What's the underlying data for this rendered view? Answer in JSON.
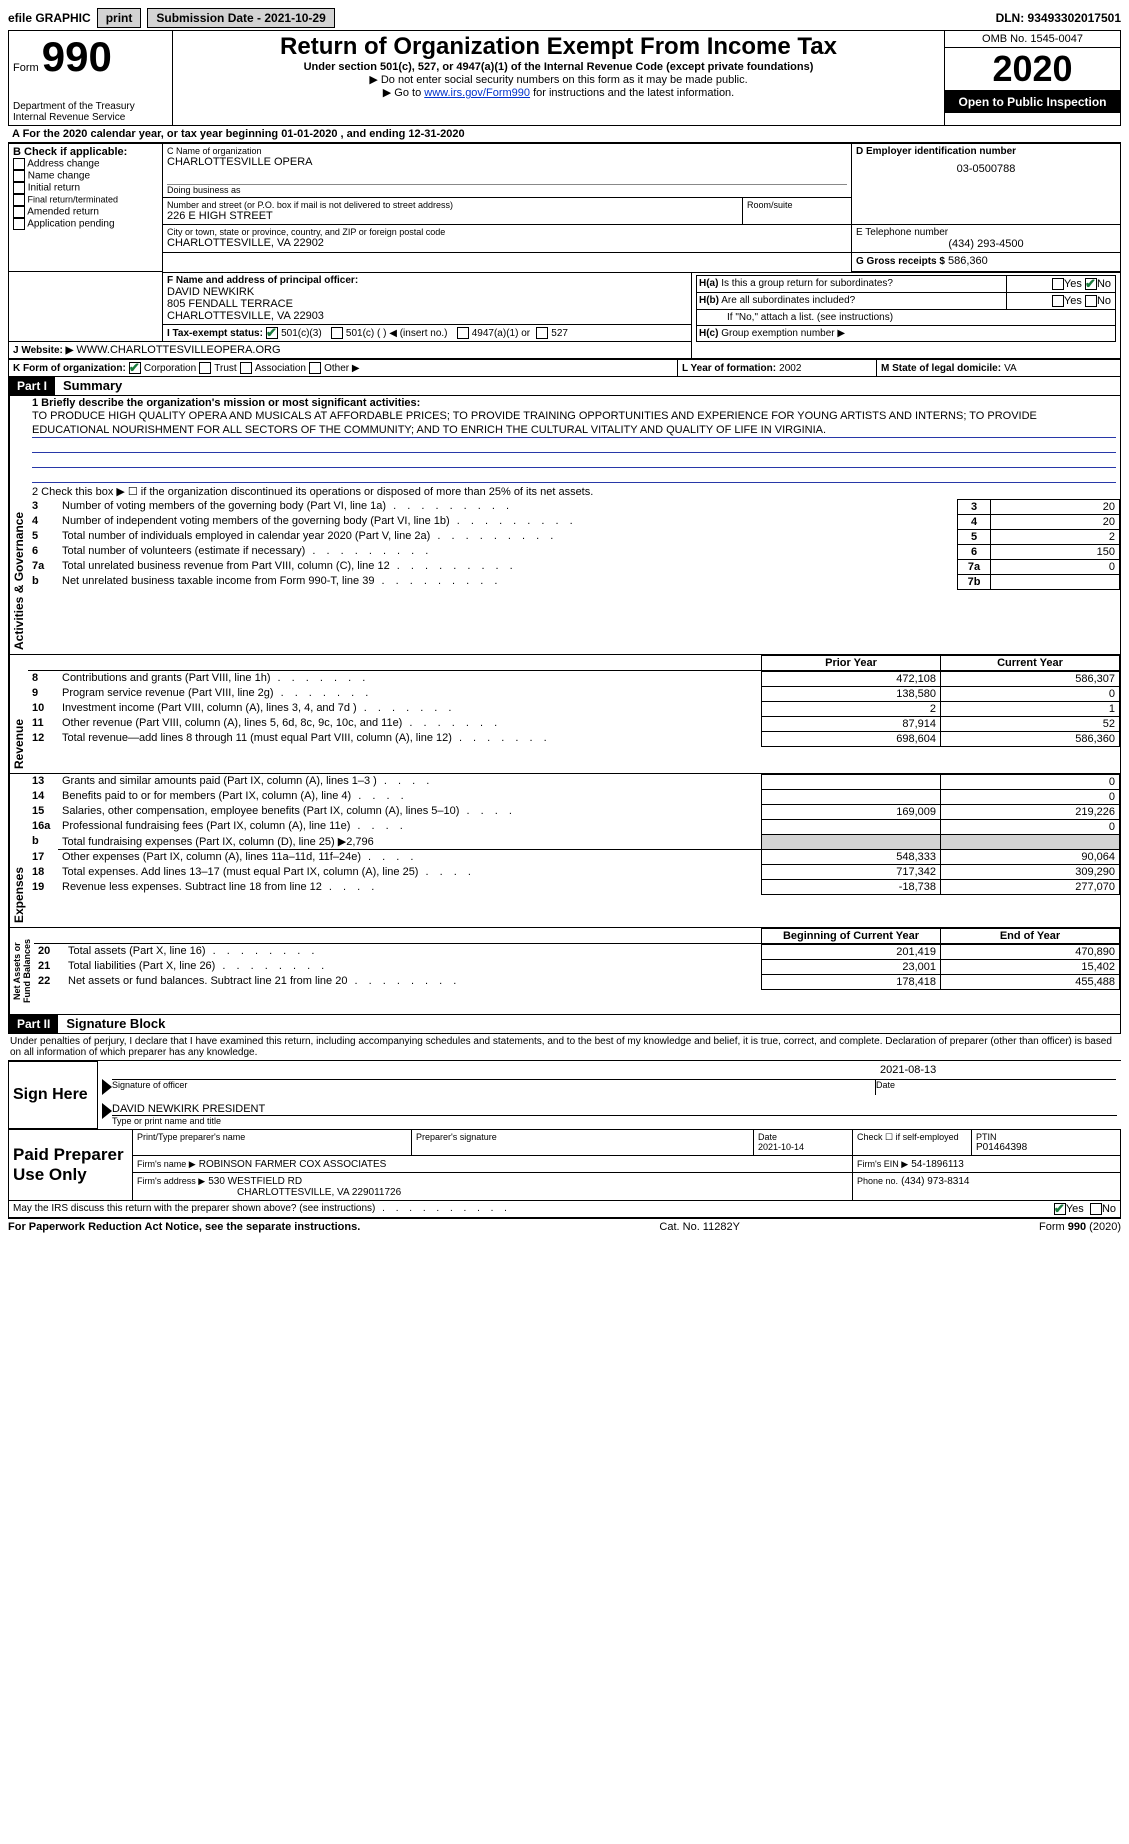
{
  "topbar": {
    "efile": "efile GRAPHIC",
    "print": "print",
    "submission_label": "Submission Date - 2021-10-29",
    "dln_label": "DLN: 93493302017501"
  },
  "header": {
    "form_prefix": "Form",
    "form_number": "990",
    "dept1": "Department of the Treasury",
    "dept2": "Internal Revenue Service",
    "title": "Return of Organization Exempt From Income Tax",
    "subtitle": "Under section 501(c), 527, or 4947(a)(1) of the Internal Revenue Code (except private foundations)",
    "note1": "▶ Do not enter social security numbers on this form as it may be made public.",
    "note2_prefix": "▶ Go to ",
    "note2_link": "www.irs.gov/Form990",
    "note2_suffix": " for instructions and the latest information.",
    "omb": "OMB No. 1545-0047",
    "year": "2020",
    "open_public": "Open to Public Inspection"
  },
  "section_a": {
    "text": "A For the 2020 calendar year, or tax year beginning 01-01-2020     , and ending 12-31-2020"
  },
  "section_b": {
    "label": "B Check if applicable:",
    "addr_change": "Address change",
    "name_change": "Name change",
    "initial": "Initial return",
    "final": "Final return/terminated",
    "amended": "Amended return",
    "app_pending": "Application pending"
  },
  "section_c": {
    "name_label": "C Name of organization",
    "name": "CHARLOTTESVILLE OPERA",
    "dba_label": "Doing business as",
    "street_label": "Number and street (or P.O. box if mail is not delivered to street address)",
    "room_label": "Room/suite",
    "street": "226 E HIGH STREET",
    "city_label": "City or town, state or province, country, and ZIP or foreign postal code",
    "city": "CHARLOTTESVILLE, VA  22902"
  },
  "section_d": {
    "label": "D Employer identification number",
    "ein": "03-0500788"
  },
  "section_e": {
    "label": "E Telephone number",
    "phone": "(434) 293-4500"
  },
  "section_g": {
    "label": "G Gross receipts $",
    "amount": "586,360"
  },
  "section_f": {
    "label": "F  Name and address of principal officer:",
    "name": "DAVID NEWKIRK",
    "addr1": "805 FENDALL TERRACE",
    "addr2": "CHARLOTTESVILLE, VA  22903"
  },
  "section_h": {
    "ha_label": "H(a)  Is this a group return for subordinates?",
    "hb_label": "H(b)  Are all subordinates included?",
    "hb_note": "If \"No,\" attach a list. (see instructions)",
    "hc_label": "H(c)  Group exemption number ▶",
    "yes": "Yes",
    "no": "No"
  },
  "section_i": {
    "label": "I    Tax-exempt status:",
    "opt1": "501(c)(3)",
    "opt2": "501(c) (   ) ◀ (insert no.)",
    "opt3": "4947(a)(1) or",
    "opt4": "527"
  },
  "section_j": {
    "label": "J   Website: ▶",
    "url": "WWW.CHARLOTTESVILLEOPERA.ORG"
  },
  "section_k": {
    "label": "K Form of organization:",
    "corp": "Corporation",
    "trust": "Trust",
    "assoc": "Association",
    "other": "Other ▶"
  },
  "section_l": {
    "label": "L Year of formation:",
    "year": "2002"
  },
  "section_m": {
    "label": "M State of legal domicile:",
    "state": "VA"
  },
  "part1": {
    "header": "Part I",
    "title": "Summary",
    "vert_gov": "Activities & Governance",
    "vert_rev": "Revenue",
    "vert_exp": "Expenses",
    "vert_net": "Net Assets or Fund Balances",
    "line1_label": "1  Briefly describe the organization's mission or most significant activities:",
    "mission": "TO PRODUCE HIGH QUALITY OPERA AND MUSICALS AT AFFORDABLE PRICES; TO PROVIDE TRAINING OPPORTUNITIES AND EXPERIENCE FOR YOUNG ARTISTS AND INTERNS; TO PROVIDE EDUCATIONAL NOURISHMENT FOR ALL SECTORS OF THE COMMUNITY; AND TO ENRICH THE CULTURAL VITALITY AND QUALITY OF LIFE IN VIRGINIA.",
    "line2": "2  Check this box ▶ ☐ if the organization discontinued its operations or disposed of more than 25% of its net assets.",
    "lines": [
      {
        "n": "3",
        "label": "Number of voting members of the governing body (Part VI, line 1a)",
        "box": "3",
        "val": "20"
      },
      {
        "n": "4",
        "label": "Number of independent voting members of the governing body (Part VI, line 1b)",
        "box": "4",
        "val": "20"
      },
      {
        "n": "5",
        "label": "Total number of individuals employed in calendar year 2020 (Part V, line 2a)",
        "box": "5",
        "val": "2"
      },
      {
        "n": "6",
        "label": "Total number of volunteers (estimate if necessary)",
        "box": "6",
        "val": "150"
      },
      {
        "n": "7a",
        "label": "Total unrelated business revenue from Part VIII, column (C), line 12",
        "box": "7a",
        "val": "0"
      },
      {
        "n": "b",
        "label": "Net unrelated business taxable income from Form 990-T, line 39",
        "box": "7b",
        "val": ""
      }
    ],
    "col_prior": "Prior Year",
    "col_current": "Current Year",
    "rev_lines": [
      {
        "n": "8",
        "label": "Contributions and grants (Part VIII, line 1h)",
        "prior": "472,108",
        "curr": "586,307"
      },
      {
        "n": "9",
        "label": "Program service revenue (Part VIII, line 2g)",
        "prior": "138,580",
        "curr": "0"
      },
      {
        "n": "10",
        "label": "Investment income (Part VIII, column (A), lines 3, 4, and 7d )",
        "prior": "2",
        "curr": "1"
      },
      {
        "n": "11",
        "label": "Other revenue (Part VIII, column (A), lines 5, 6d, 8c, 9c, 10c, and 11e)",
        "prior": "87,914",
        "curr": "52"
      },
      {
        "n": "12",
        "label": "Total revenue—add lines 8 through 11 (must equal Part VIII, column (A), line 12)",
        "prior": "698,604",
        "curr": "586,360"
      }
    ],
    "exp_lines": [
      {
        "n": "13",
        "label": "Grants and similar amounts paid (Part IX, column (A), lines 1–3 )",
        "prior": "",
        "curr": "0"
      },
      {
        "n": "14",
        "label": "Benefits paid to or for members (Part IX, column (A), line 4)",
        "prior": "",
        "curr": "0"
      },
      {
        "n": "15",
        "label": "Salaries, other compensation, employee benefits (Part IX, column (A), lines 5–10)",
        "prior": "169,009",
        "curr": "219,226"
      },
      {
        "n": "16a",
        "label": "Professional fundraising fees (Part IX, column (A), line 11e)",
        "prior": "",
        "curr": "0"
      },
      {
        "n": "b",
        "label": "Total fundraising expenses (Part IX, column (D), line 25) ▶2,796",
        "prior": null,
        "curr": null
      },
      {
        "n": "17",
        "label": "Other expenses (Part IX, column (A), lines 11a–11d, 11f–24e)",
        "prior": "548,333",
        "curr": "90,064"
      },
      {
        "n": "18",
        "label": "Total expenses. Add lines 13–17 (must equal Part IX, column (A), line 25)",
        "prior": "717,342",
        "curr": "309,290"
      },
      {
        "n": "19",
        "label": "Revenue less expenses. Subtract line 18 from line 12",
        "prior": "-18,738",
        "curr": "277,070"
      }
    ],
    "col_begin": "Beginning of Current Year",
    "col_end": "End of Year",
    "net_lines": [
      {
        "n": "20",
        "label": "Total assets (Part X, line 16)",
        "prior": "201,419",
        "curr": "470,890"
      },
      {
        "n": "21",
        "label": "Total liabilities (Part X, line 26)",
        "prior": "23,001",
        "curr": "15,402"
      },
      {
        "n": "22",
        "label": "Net assets or fund balances. Subtract line 21 from line 20",
        "prior": "178,418",
        "curr": "455,488"
      }
    ]
  },
  "part2": {
    "header": "Part II",
    "title": "Signature Block",
    "penalty": "Under penalties of perjury, I declare that I have examined this return, including accompanying schedules and statements, and to the best of my knowledge and belief, it is true, correct, and complete. Declaration of preparer (other than officer) is based on all information of which preparer has any knowledge.",
    "sign_here": "Sign Here",
    "sig_officer": "Signature of officer",
    "sig_date": "2021-08-13",
    "date_label": "Date",
    "sig_name": "DAVID NEWKIRK PRESIDENT",
    "type_label": "Type or print name and title",
    "paid": "Paid Preparer Use Only",
    "prep_name_label": "Print/Type preparer's name",
    "prep_sig_label": "Preparer's signature",
    "prep_date_label": "Date",
    "prep_date": "2021-10-14",
    "prep_check_label": "Check ☐ if self-employed",
    "ptin_label": "PTIN",
    "ptin": "P01464398",
    "firm_name_label": "Firm's name     ▶",
    "firm_name": "ROBINSON FARMER COX ASSOCIATES",
    "firm_ein_label": "Firm's EIN ▶",
    "firm_ein": "54-1896113",
    "firm_addr_label": "Firm's address ▶",
    "firm_addr1": "530 WESTFIELD RD",
    "firm_addr2": "CHARLOTTESVILLE, VA  229011726",
    "firm_phone_label": "Phone no.",
    "firm_phone": "(434) 973-8314",
    "discuss": "May the IRS discuss this return with the preparer shown above? (see instructions)",
    "yes": "Yes",
    "no": "No"
  },
  "footer": {
    "left": "For Paperwork Reduction Act Notice, see the separate instructions.",
    "mid": "Cat. No. 11282Y",
    "right": "Form 990 (2020)"
  }
}
